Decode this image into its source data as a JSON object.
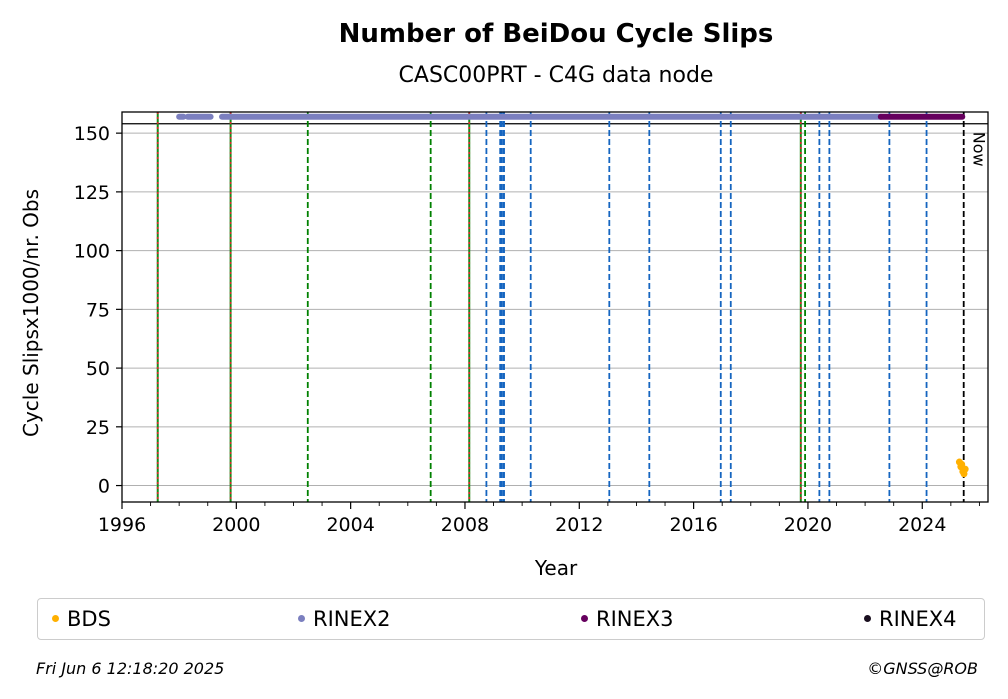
{
  "chart_data": {
    "type": "scatter",
    "title": "Number of BeiDou Cycle Slips",
    "subtitle": "CASC00PRT - C4G data node",
    "xlabel": "Year",
    "ylabel": "Cycle Slipsx1000/nr. Obs",
    "xlim": [
      1996,
      2026.3
    ],
    "ylim": [
      -7,
      159
    ],
    "x_ticks": [
      1996,
      2000,
      2004,
      2008,
      2012,
      2016,
      2020,
      2024
    ],
    "y_ticks": [
      0,
      25,
      50,
      75,
      100,
      125,
      150
    ],
    "grid": "y",
    "hline": 154,
    "now_label": "Now",
    "now_x": 2025.45,
    "vlines": [
      {
        "x": 1997.25,
        "style": "red-green"
      },
      {
        "x": 1999.8,
        "style": "red-green"
      },
      {
        "x": 2002.5,
        "style": "green"
      },
      {
        "x": 2006.8,
        "style": "green"
      },
      {
        "x": 2008.15,
        "style": "red-green"
      },
      {
        "x": 2008.75,
        "style": "blue"
      },
      {
        "x": 2009.25,
        "style": "blue-thick"
      },
      {
        "x": 2009.35,
        "style": "blue-thick"
      },
      {
        "x": 2010.3,
        "style": "blue"
      },
      {
        "x": 2013.05,
        "style": "blue"
      },
      {
        "x": 2014.45,
        "style": "blue"
      },
      {
        "x": 2016.95,
        "style": "blue"
      },
      {
        "x": 2017.3,
        "style": "blue"
      },
      {
        "x": 2019.75,
        "style": "red-green"
      },
      {
        "x": 2019.9,
        "style": "green"
      },
      {
        "x": 2020.4,
        "style": "blue"
      },
      {
        "x": 2020.75,
        "style": "blue"
      },
      {
        "x": 2022.85,
        "style": "blue"
      },
      {
        "x": 2024.15,
        "style": "blue"
      },
      {
        "x": 2025.45,
        "style": "now"
      }
    ],
    "series": [
      {
        "name": "BDS",
        "color": "#ffb000",
        "segments": [],
        "points": [
          [
            2025.3,
            10
          ],
          [
            2025.35,
            8
          ],
          [
            2025.38,
            9
          ],
          [
            2025.42,
            6
          ],
          [
            2025.46,
            5
          ],
          [
            2025.5,
            7
          ]
        ]
      },
      {
        "name": "RINEX2",
        "color": "#7b7fbf",
        "segments": [
          [
            1998.0,
            1998.15,
            157
          ],
          [
            1998.3,
            1999.1,
            157
          ],
          [
            1999.5,
            2022.55,
            157
          ]
        ],
        "points": []
      },
      {
        "name": "RINEX3",
        "color": "#66005e",
        "segments": [
          [
            2022.55,
            2025.4,
            157
          ]
        ],
        "points": []
      },
      {
        "name": "RINEX4",
        "color": "#1a0f1f",
        "segments": [],
        "points": []
      }
    ]
  },
  "footer": {
    "timestamp": "Fri Jun  6 12:18:20 2025",
    "copyright": "©GNSS@ROB"
  }
}
